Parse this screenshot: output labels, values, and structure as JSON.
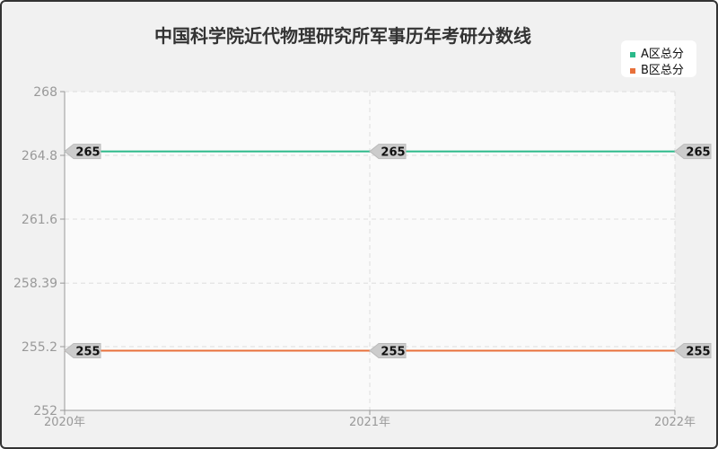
{
  "chart_data": {
    "type": "line",
    "title": "中国科学院近代物理研究所军事历年考研分数线",
    "x": [
      "2020年",
      "2021年",
      "2022年"
    ],
    "yticks": [
      "268",
      "264.8",
      "261.6",
      "258.39",
      "255.2",
      "252"
    ],
    "ylim": [
      252,
      268
    ],
    "grid": true,
    "legend_position": "top-right",
    "series": [
      {
        "name": "A区总分",
        "values": [
          265,
          265,
          265
        ],
        "color": "#2bb98a"
      },
      {
        "name": "B区总分",
        "values": [
          255,
          255,
          255
        ],
        "color": "#e8703a"
      }
    ]
  }
}
